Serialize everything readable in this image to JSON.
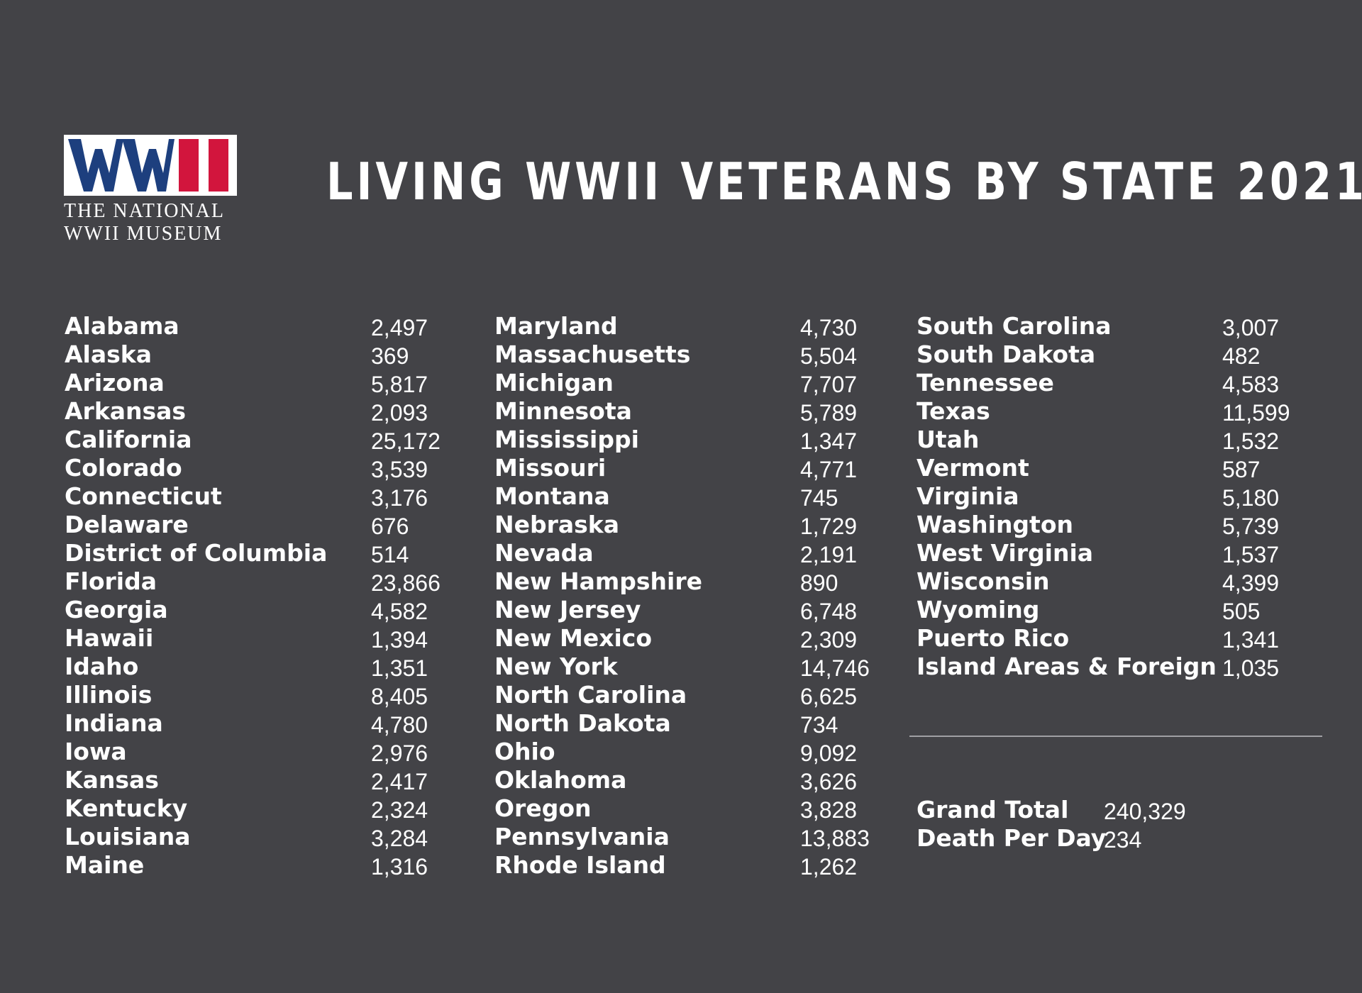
{
  "logo": {
    "mark": "WWII",
    "line1": "THE NATIONAL",
    "line2": "WWII MUSEUM",
    "colors": {
      "blue": "#1d3f7e",
      "red": "#d2153d",
      "white": "#ffffff"
    }
  },
  "title": "LIVING WWII VETERANS BY STATE 2021",
  "columns": [
    [
      {
        "name": "Alabama",
        "value": "2,497"
      },
      {
        "name": "Alaska",
        "value": "369"
      },
      {
        "name": "Arizona",
        "value": "5,817"
      },
      {
        "name": "Arkansas",
        "value": "2,093"
      },
      {
        "name": "California",
        "value": "25,172"
      },
      {
        "name": "Colorado",
        "value": "3,539"
      },
      {
        "name": "Connecticut",
        "value": "3,176"
      },
      {
        "name": "Delaware",
        "value": "676"
      },
      {
        "name": "District of Columbia",
        "value": "514"
      },
      {
        "name": "Florida",
        "value": "23,866"
      },
      {
        "name": "Georgia",
        "value": "4,582"
      },
      {
        "name": "Hawaii",
        "value": "1,394"
      },
      {
        "name": "Idaho",
        "value": "1,351"
      },
      {
        "name": "Illinois",
        "value": "8,405"
      },
      {
        "name": "Indiana",
        "value": "4,780"
      },
      {
        "name": "Iowa",
        "value": "2,976"
      },
      {
        "name": "Kansas",
        "value": "2,417"
      },
      {
        "name": "Kentucky",
        "value": "2,324"
      },
      {
        "name": "Louisiana",
        "value": "3,284"
      },
      {
        "name": "Maine",
        "value": "1,316"
      }
    ],
    [
      {
        "name": "Maryland",
        "value": "4,730"
      },
      {
        "name": "Massachusetts",
        "value": "5,504"
      },
      {
        "name": "Michigan",
        "value": "7,707"
      },
      {
        "name": "Minnesota",
        "value": "5,789"
      },
      {
        "name": "Mississippi",
        "value": "1,347"
      },
      {
        "name": "Missouri",
        "value": "4,771"
      },
      {
        "name": "Montana",
        "value": "745"
      },
      {
        "name": "Nebraska",
        "value": "1,729"
      },
      {
        "name": "Nevada",
        "value": "2,191"
      },
      {
        "name": "New Hampshire",
        "value": "890"
      },
      {
        "name": "New Jersey",
        "value": "6,748"
      },
      {
        "name": "New Mexico",
        "value": "2,309"
      },
      {
        "name": "New York",
        "value": "14,746"
      },
      {
        "name": "North Carolina",
        "value": "6,625"
      },
      {
        "name": "North Dakota",
        "value": "734"
      },
      {
        "name": "Ohio",
        "value": "9,092"
      },
      {
        "name": "Oklahoma",
        "value": "3,626"
      },
      {
        "name": "Oregon",
        "value": "3,828"
      },
      {
        "name": "Pennsylvania",
        "value": "13,883"
      },
      {
        "name": "Rhode Island",
        "value": "1,262"
      }
    ],
    [
      {
        "name": "South Carolina",
        "value": "3,007"
      },
      {
        "name": "South Dakota",
        "value": "482"
      },
      {
        "name": "Tennessee",
        "value": "4,583"
      },
      {
        "name": "Texas",
        "value": "11,599"
      },
      {
        "name": "Utah",
        "value": "1,532"
      },
      {
        "name": "Vermont",
        "value": "587"
      },
      {
        "name": "Virginia",
        "value": "5,180"
      },
      {
        "name": "Washington",
        "value": "5,739"
      },
      {
        "name": "West Virginia",
        "value": "1,537"
      },
      {
        "name": "Wisconsin",
        "value": "4,399"
      },
      {
        "name": "Wyoming",
        "value": "505"
      },
      {
        "name": "Puerto Rico",
        "value": "1,341"
      },
      {
        "name": "Island Areas & Foreign",
        "value": "1,035"
      }
    ]
  ],
  "totals": [
    {
      "name": "Grand Total",
      "value": "240,329"
    },
    {
      "name": "Death Per Day",
      "value": "234"
    }
  ]
}
